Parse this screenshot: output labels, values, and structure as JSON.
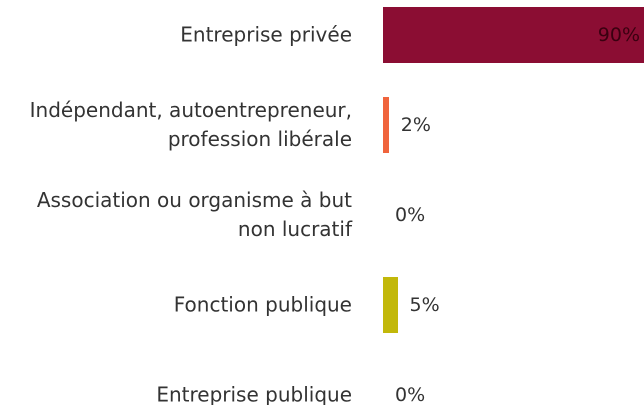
{
  "chart_data": {
    "type": "bar",
    "orientation": "horizontal",
    "categories": [
      "Entreprise privée",
      "Indépendant, autoentrepreneur, profession libérale",
      "Association ou organisme à but non lucratif",
      "Fonction publique",
      "Entreprise publique"
    ],
    "values": [
      90,
      2,
      0,
      5,
      0
    ],
    "value_labels": [
      "90%",
      "2%",
      "0%",
      "5%",
      "0%"
    ],
    "colors": [
      "#8b0d33",
      "#f0643c",
      "#8b0d33",
      "#c2b80a",
      "#8b0d33"
    ]
  }
}
